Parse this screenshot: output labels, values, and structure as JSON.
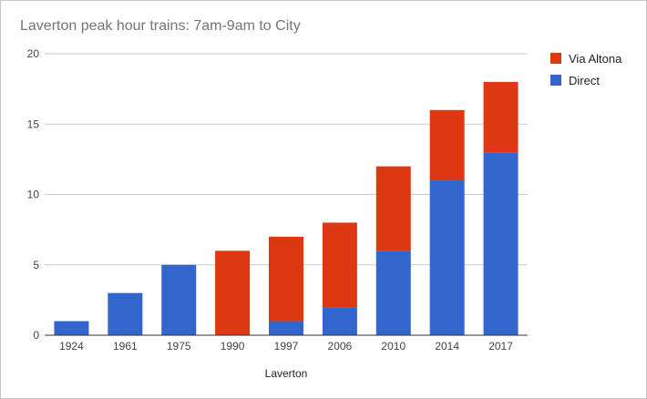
{
  "chart_data": {
    "type": "bar",
    "stacked": true,
    "title": "Laverton peak hour trains: 7am-9am to City",
    "xlabel": "Laverton",
    "ylabel": "",
    "categories": [
      "1924",
      "1961",
      "1975",
      "1990",
      "1997",
      "2006",
      "2010",
      "2014",
      "2017"
    ],
    "series": [
      {
        "name": "Direct",
        "color": "#3366cc",
        "values": [
          1,
          3,
          5,
          0,
          1,
          2,
          6,
          11,
          13
        ]
      },
      {
        "name": "Via Altona",
        "color": "#dc3912",
        "values": [
          0,
          0,
          0,
          6,
          6,
          6,
          6,
          5,
          5
        ]
      }
    ],
    "legend_order": [
      1,
      0
    ],
    "yticks": [
      "0",
      "5",
      "10",
      "15",
      "20"
    ],
    "ylim": [
      0,
      20
    ],
    "grid": true,
    "legend_position": "right"
  }
}
